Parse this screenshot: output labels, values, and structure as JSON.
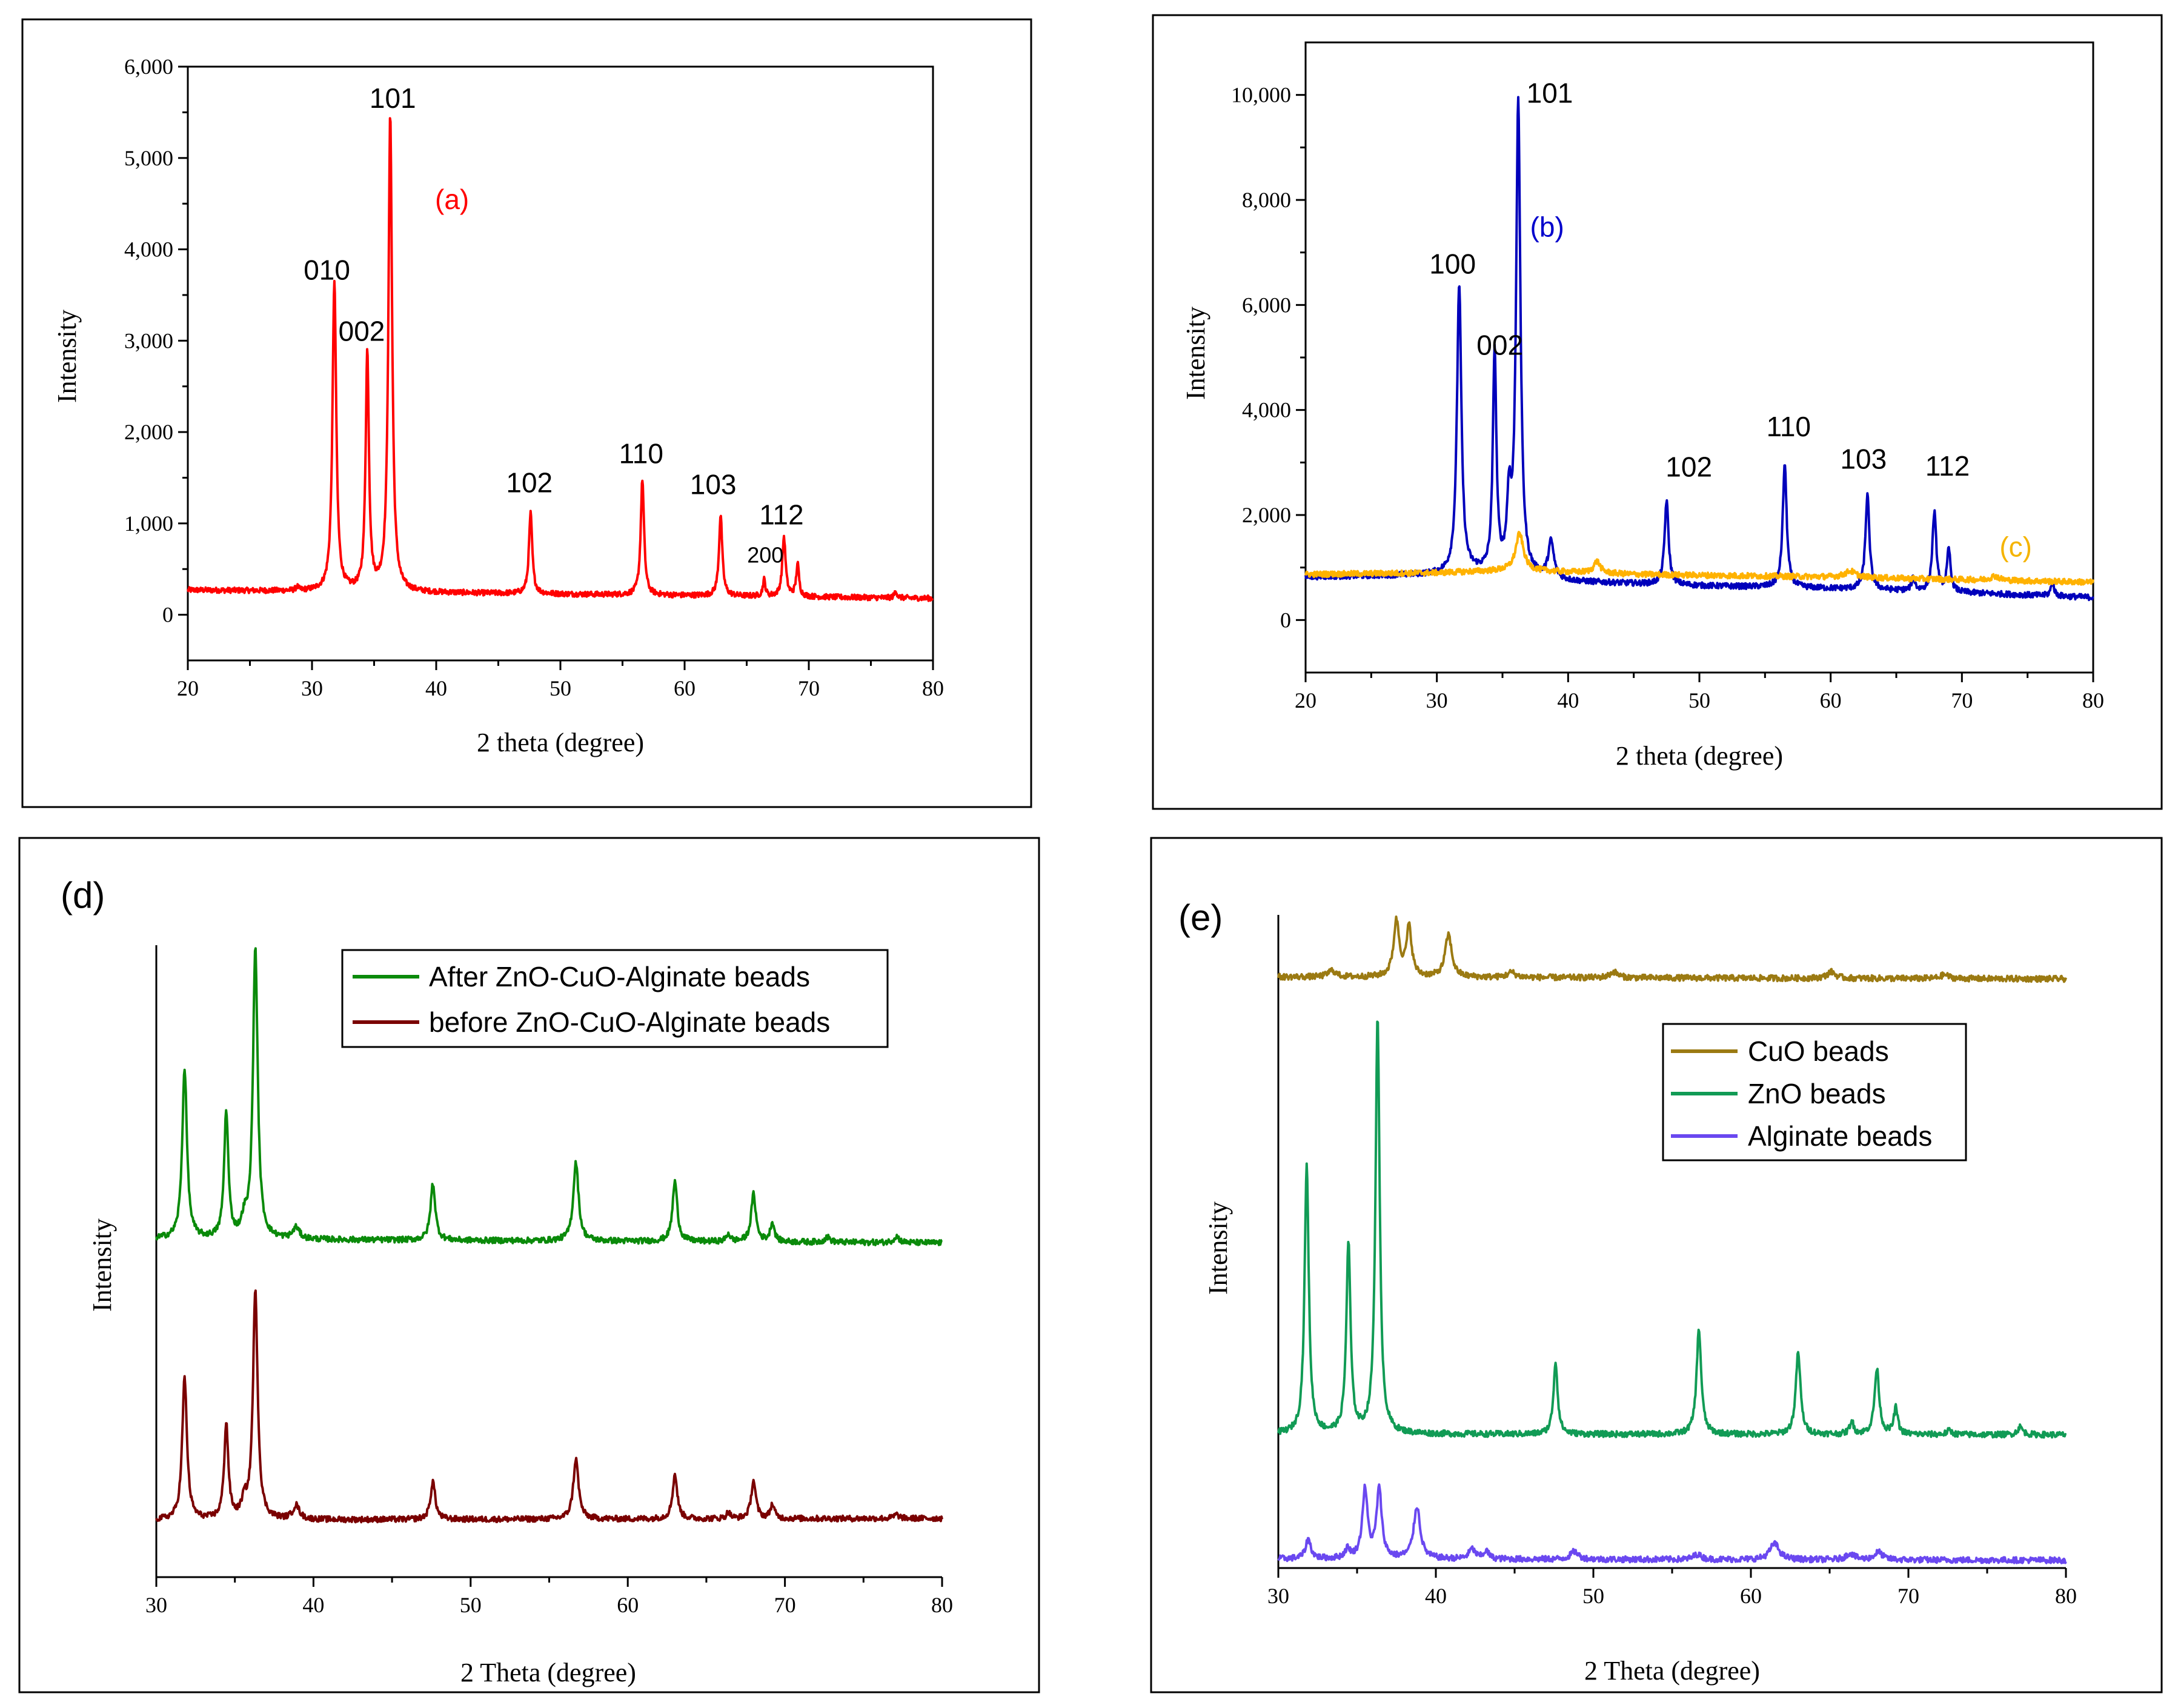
{
  "chart_data": [
    {
      "id": "a",
      "type": "line",
      "panel_label": "(a)",
      "panel_label_color": "#ff0000",
      "xlabel": "2 theta (degree)",
      "ylabel": "Intensity",
      "xlim": [
        20,
        80
      ],
      "ylim": [
        -500,
        6000
      ],
      "xticks": [
        20,
        30,
        40,
        50,
        60,
        70,
        80
      ],
      "yticks": [
        0,
        1000,
        2000,
        3000,
        4000,
        5000,
        6000
      ],
      "ytick_labels": [
        "0",
        "1,000",
        "2,000",
        "3,000",
        "4,000",
        "5,000",
        "6,000"
      ],
      "series": [
        {
          "name": "(a)",
          "color": "#ff0000",
          "baseline": [
            [
              20,
              270
            ],
            [
              80,
              180
            ]
          ],
          "peaks": [
            [
              31.8,
              3400,
              0.18
            ],
            [
              34.45,
              2600,
              0.16
            ],
            [
              36.3,
              5200,
              0.18
            ],
            [
              47.6,
              880,
              0.16
            ],
            [
              56.6,
              1270,
              0.16
            ],
            [
              62.9,
              880,
              0.16
            ],
            [
              66.4,
              180,
              0.12
            ],
            [
              68.0,
              650,
              0.16
            ],
            [
              69.1,
              350,
              0.14
            ],
            [
              77.0,
              80,
              0.12
            ],
            [
              28.8,
              40,
              0.12
            ]
          ]
        }
      ],
      "peak_labels": [
        {
          "text": "010",
          "x": 31.2,
          "y": 3670
        },
        {
          "text": "002",
          "x": 34.0,
          "y": 3000
        },
        {
          "text": "101",
          "x": 36.5,
          "y": 5550
        },
        {
          "text": "102",
          "x": 47.5,
          "y": 1340
        },
        {
          "text": "110",
          "x": 56.5,
          "y": 1660
        },
        {
          "text": "103",
          "x": 62.3,
          "y": 1320
        },
        {
          "text": "112",
          "x": 67.8,
          "y": 990
        },
        {
          "text": "200",
          "x": 66.5,
          "y": 570
        }
      ]
    },
    {
      "id": "b",
      "type": "line",
      "xlabel": "2 theta (degree)",
      "ylabel": "Intensity",
      "xlim": [
        20,
        80
      ],
      "ylim": [
        -1000,
        11000
      ],
      "xticks": [
        20,
        30,
        40,
        50,
        60,
        70,
        80
      ],
      "yticks": [
        0,
        2000,
        4000,
        6000,
        8000,
        10000
      ],
      "ytick_labels": [
        "0",
        "2,000",
        "4,000",
        "6,000",
        "8,000",
        "10,000"
      ],
      "series": [
        {
          "name": "(b)",
          "color": "#0000bb",
          "baseline": [
            [
              20,
              820
            ],
            [
              30,
              860
            ],
            [
              33,
              900
            ],
            [
              40,
              730
            ],
            [
              50,
              650
            ],
            [
              60,
              600
            ],
            [
              70,
              520
            ],
            [
              80,
              430
            ]
          ],
          "peaks": [
            [
              31.7,
              5500,
              0.2
            ],
            [
              34.4,
              4200,
              0.16
            ],
            [
              35.5,
              1300,
              0.18
            ],
            [
              36.2,
              8950,
              0.2
            ],
            [
              38.7,
              700,
              0.25
            ],
            [
              47.5,
              1600,
              0.18
            ],
            [
              56.5,
              2350,
              0.18
            ],
            [
              62.8,
              1800,
              0.18
            ],
            [
              66.3,
              250,
              0.15
            ],
            [
              67.9,
              1500,
              0.18
            ],
            [
              69.0,
              800,
              0.16
            ],
            [
              76.9,
              250,
              0.15
            ]
          ]
        },
        {
          "name": "(c)",
          "color": "#ffb200",
          "baseline": [
            [
              20,
              870
            ],
            [
              30,
              900
            ],
            [
              36,
              950
            ],
            [
              45,
              870
            ],
            [
              60,
              820
            ],
            [
              80,
              720
            ]
          ],
          "peaks": [
            [
              36.3,
              700,
              0.35
            ],
            [
              42.2,
              220,
              0.3
            ],
            [
              61.5,
              120,
              0.5
            ],
            [
              72.5,
              80,
              0.4
            ]
          ]
        }
      ],
      "peak_labels": [
        {
          "text": "100",
          "x": 31.2,
          "y": 6600
        },
        {
          "text": "002",
          "x": 34.8,
          "y": 5050
        },
        {
          "text": "101",
          "x": 38.6,
          "y": 9850
        },
        {
          "text": "102",
          "x": 49.2,
          "y": 2730
        },
        {
          "text": "110",
          "x": 56.8,
          "y": 3500
        },
        {
          "text": "103",
          "x": 62.5,
          "y": 2880
        },
        {
          "text": "112",
          "x": 68.9,
          "y": 2750
        }
      ],
      "series_labels": [
        {
          "text": "(b)",
          "x": 38.4,
          "y": 7300,
          "color": "#0000cc"
        },
        {
          "text": "(c)",
          "x": 74.1,
          "y": 1210,
          "color": "#f5b400"
        }
      ]
    },
    {
      "id": "d",
      "type": "line",
      "panel_label": "(d)",
      "xlabel": "2 Theta (degree)",
      "ylabel": "Intensity",
      "xlim": [
        30,
        80
      ],
      "ylim": [
        0,
        100
      ],
      "xticks": [
        30,
        40,
        50,
        60,
        70,
        80
      ],
      "legend": {
        "position": "top-right",
        "entries": [
          "After ZnO-CuO-Alginate beads",
          "before ZnO-CuO-Alginate beads"
        ]
      },
      "series": [
        {
          "name": "After ZnO-CuO-Alginate beads",
          "color": "#0a8a0a",
          "baseline": [
            [
              30,
              53.5
            ],
            [
              80,
              52.9
            ]
          ],
          "peaks": [
            [
              31.8,
              27,
              0.18
            ],
            [
              34.45,
              20,
              0.16
            ],
            [
              35.6,
              2.5,
              0.2
            ],
            [
              36.3,
              46,
              0.18
            ],
            [
              38.9,
              1.8,
              0.25
            ],
            [
              47.6,
              9,
              0.18
            ],
            [
              56.7,
              12.5,
              0.2
            ],
            [
              63.0,
              9.5,
              0.18
            ],
            [
              66.4,
              1.2,
              0.15
            ],
            [
              68.0,
              7.5,
              0.18
            ],
            [
              69.2,
              3,
              0.16
            ],
            [
              72.7,
              0.8,
              0.2
            ],
            [
              77.1,
              1,
              0.2
            ]
          ]
        },
        {
          "name": "before ZnO-CuO-Alginate beads",
          "color": "#7a0000",
          "baseline": [
            [
              30,
              9
            ],
            [
              80,
              9.3
            ]
          ],
          "peaks": [
            [
              31.8,
              22.5,
              0.18
            ],
            [
              34.45,
              15,
              0.16
            ],
            [
              35.6,
              2.5,
              0.2
            ],
            [
              36.3,
              36,
              0.18
            ],
            [
              38.9,
              2.2,
              0.25
            ],
            [
              47.6,
              6,
              0.18
            ],
            [
              56.7,
              9.5,
              0.2
            ],
            [
              63.0,
              7,
              0.18
            ],
            [
              66.4,
              1,
              0.15
            ],
            [
              68.0,
              6,
              0.18
            ],
            [
              69.2,
              2.2,
              0.16
            ],
            [
              77.1,
              0.6,
              0.2
            ]
          ]
        }
      ]
    },
    {
      "id": "e",
      "type": "line",
      "panel_label": "(e)",
      "xlabel": "2 Theta (degree)",
      "ylabel": "Intensity",
      "xlim": [
        30,
        80
      ],
      "ylim": [
        0,
        100
      ],
      "xticks": [
        30,
        40,
        50,
        60,
        70,
        80
      ],
      "legend": {
        "position": "center-right",
        "entries": [
          "CuO beads",
          "ZnO beads",
          "Alginate beads"
        ]
      },
      "series": [
        {
          "name": "CuO beads",
          "color": "#9b7a12",
          "baseline": [
            [
              30,
              90.5
            ],
            [
              80,
              90.2
            ]
          ],
          "peaks": [
            [
              33.4,
              1,
              0.3
            ],
            [
              37.5,
              8.5,
              0.22
            ],
            [
              38.3,
              7.5,
              0.2
            ],
            [
              40.8,
              6.5,
              0.25
            ],
            [
              44.8,
              0.8,
              0.3
            ],
            [
              51.3,
              0.9,
              0.3
            ],
            [
              65.1,
              1,
              0.3
            ],
            [
              72.3,
              0.6,
              0.3
            ]
          ]
        },
        {
          "name": "ZnO beads",
          "color": "#119b55",
          "baseline": [
            [
              30,
              20.5
            ],
            [
              80,
              20.4
            ]
          ],
          "peaks": [
            [
              31.8,
              41,
              0.16
            ],
            [
              34.45,
              29,
              0.16
            ],
            [
              36.3,
              63.5,
              0.16
            ],
            [
              47.6,
              11,
              0.16
            ],
            [
              56.7,
              16,
              0.18
            ],
            [
              63.0,
              12.5,
              0.18
            ],
            [
              66.4,
              2,
              0.15
            ],
            [
              68.0,
              10,
              0.18
            ],
            [
              69.2,
              4,
              0.15
            ],
            [
              72.6,
              0.6,
              0.2
            ],
            [
              77.1,
              1.2,
              0.2
            ]
          ]
        },
        {
          "name": "Alginate beads",
          "color": "#6a48f0",
          "baseline": [
            [
              30,
              1.4
            ],
            [
              80,
              1.2
            ]
          ],
          "peaks": [
            [
              31.9,
              3,
              0.2
            ],
            [
              34.4,
              1.4,
              0.2
            ],
            [
              35.5,
              10.5,
              0.2
            ],
            [
              36.4,
              10.5,
              0.2
            ],
            [
              38.8,
              8,
              0.25
            ],
            [
              42.3,
              1.5,
              0.25
            ],
            [
              43.2,
              1.2,
              0.2
            ],
            [
              48.8,
              1.2,
              0.3
            ],
            [
              56.6,
              0.8,
              0.3
            ],
            [
              61.5,
              2.5,
              0.35
            ],
            [
              66.3,
              1,
              0.3
            ],
            [
              68.1,
              1.2,
              0.3
            ]
          ]
        }
      ]
    }
  ]
}
